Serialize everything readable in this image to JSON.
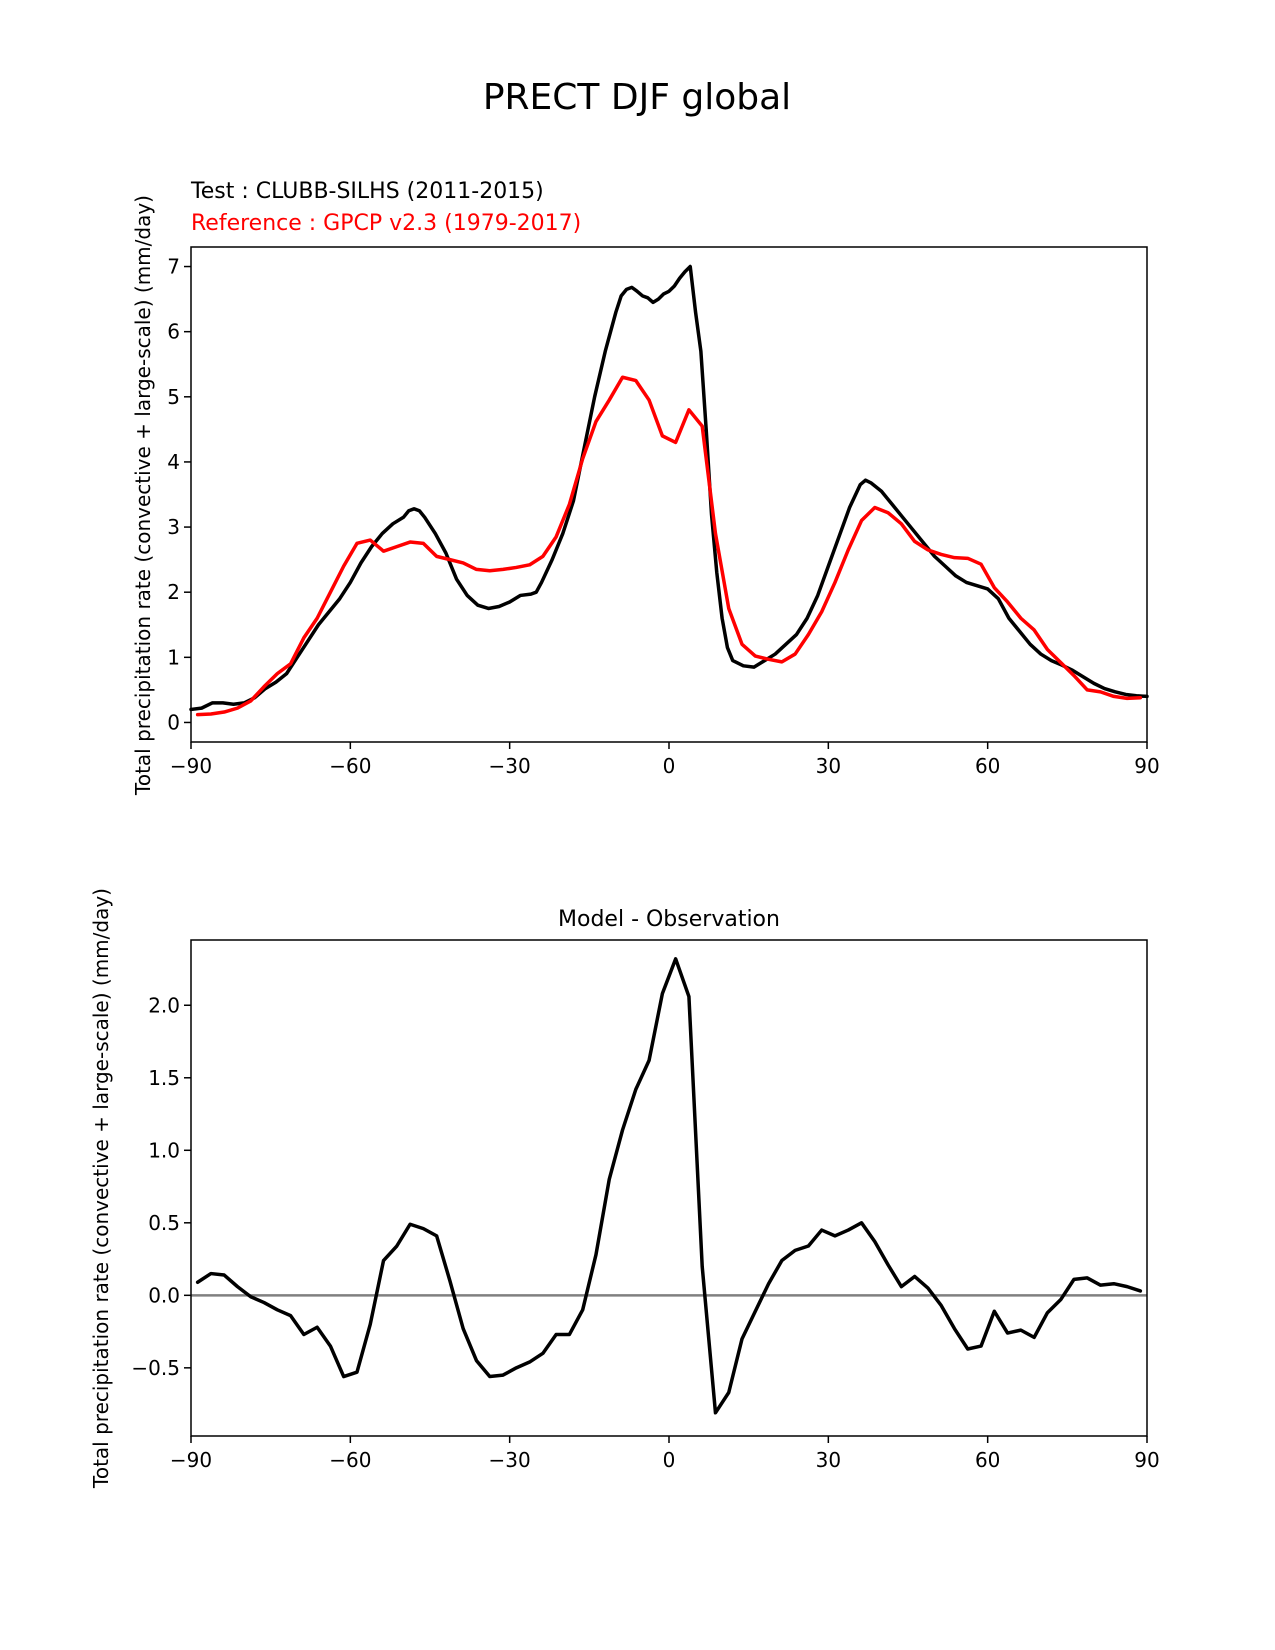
{
  "figure_title": "PRECT DJF global",
  "chart_data": [
    {
      "type": "line",
      "title_lines": [
        {
          "text": "Test : CLUBB-SILHS (2011-2015)",
          "color": "#000000"
        },
        {
          "text": "Reference : GPCP v2.3 (1979-2017)",
          "color": "#ff0000"
        }
      ],
      "ylabel": "Total precipitation rate (convective + large-scale) (mm/day)",
      "xlim": [
        -90,
        90
      ],
      "ylim": [
        -0.3,
        7.3
      ],
      "xticks": [
        -90,
        -60,
        -30,
        0,
        30,
        60,
        90
      ],
      "xtick_labels": [
        "−90",
        "−60",
        "−30",
        "0",
        "30",
        "60",
        "90"
      ],
      "yticks": [
        0,
        1,
        2,
        3,
        4,
        5,
        6,
        7
      ],
      "ytick_labels": [
        "0",
        "1",
        "2",
        "3",
        "4",
        "5",
        "6",
        "7"
      ],
      "series": [
        {
          "role": "test",
          "color": "#000000",
          "points": [
            [
              -90,
              0.2
            ],
            [
              -88,
              0.22
            ],
            [
              -86,
              0.3
            ],
            [
              -84,
              0.3
            ],
            [
              -82,
              0.28
            ],
            [
              -80,
              0.3
            ],
            [
              -78,
              0.38
            ],
            [
              -76,
              0.52
            ],
            [
              -74,
              0.62
            ],
            [
              -72,
              0.75
            ],
            [
              -70,
              1.0
            ],
            [
              -68,
              1.25
            ],
            [
              -66,
              1.5
            ],
            [
              -64,
              1.7
            ],
            [
              -62,
              1.9
            ],
            [
              -60,
              2.15
            ],
            [
              -58,
              2.45
            ],
            [
              -56,
              2.7
            ],
            [
              -54,
              2.9
            ],
            [
              -52,
              3.05
            ],
            [
              -50,
              3.15
            ],
            [
              -49,
              3.25
            ],
            [
              -48,
              3.28
            ],
            [
              -47,
              3.25
            ],
            [
              -46,
              3.15
            ],
            [
              -44,
              2.9
            ],
            [
              -42,
              2.6
            ],
            [
              -40,
              2.2
            ],
            [
              -38,
              1.95
            ],
            [
              -36,
              1.8
            ],
            [
              -34,
              1.75
            ],
            [
              -32,
              1.78
            ],
            [
              -30,
              1.85
            ],
            [
              -28,
              1.95
            ],
            [
              -26,
              1.97
            ],
            [
              -25,
              2.0
            ],
            [
              -24,
              2.15
            ],
            [
              -22,
              2.5
            ],
            [
              -20,
              2.9
            ],
            [
              -18,
              3.4
            ],
            [
              -16,
              4.2
            ],
            [
              -14,
              5.0
            ],
            [
              -12,
              5.7
            ],
            [
              -10,
              6.3
            ],
            [
              -9,
              6.55
            ],
            [
              -8,
              6.65
            ],
            [
              -7,
              6.68
            ],
            [
              -6,
              6.62
            ],
            [
              -5,
              6.55
            ],
            [
              -4,
              6.52
            ],
            [
              -3,
              6.45
            ],
            [
              -2,
              6.5
            ],
            [
              -1,
              6.58
            ],
            [
              0,
              6.62
            ],
            [
              1,
              6.7
            ],
            [
              2,
              6.82
            ],
            [
              3,
              6.92
            ],
            [
              4,
              7.0
            ],
            [
              5,
              6.3
            ],
            [
              6,
              5.7
            ],
            [
              7,
              4.5
            ],
            [
              8,
              3.2
            ],
            [
              9,
              2.3
            ],
            [
              10,
              1.6
            ],
            [
              11,
              1.15
            ],
            [
              12,
              0.95
            ],
            [
              14,
              0.87
            ],
            [
              16,
              0.85
            ],
            [
              18,
              0.95
            ],
            [
              20,
              1.05
            ],
            [
              22,
              1.2
            ],
            [
              24,
              1.35
            ],
            [
              26,
              1.6
            ],
            [
              28,
              1.95
            ],
            [
              30,
              2.4
            ],
            [
              32,
              2.85
            ],
            [
              34,
              3.3
            ],
            [
              36,
              3.65
            ],
            [
              37,
              3.72
            ],
            [
              38,
              3.68
            ],
            [
              40,
              3.55
            ],
            [
              42,
              3.35
            ],
            [
              44,
              3.15
            ],
            [
              46,
              2.95
            ],
            [
              48,
              2.75
            ],
            [
              50,
              2.55
            ],
            [
              52,
              2.4
            ],
            [
              54,
              2.25
            ],
            [
              56,
              2.15
            ],
            [
              58,
              2.1
            ],
            [
              60,
              2.05
            ],
            [
              62,
              1.9
            ],
            [
              64,
              1.6
            ],
            [
              66,
              1.4
            ],
            [
              68,
              1.2
            ],
            [
              70,
              1.05
            ],
            [
              72,
              0.95
            ],
            [
              74,
              0.88
            ],
            [
              76,
              0.8
            ],
            [
              78,
              0.7
            ],
            [
              80,
              0.6
            ],
            [
              82,
              0.52
            ],
            [
              84,
              0.47
            ],
            [
              86,
              0.43
            ],
            [
              88,
              0.41
            ],
            [
              90,
              0.4
            ]
          ]
        },
        {
          "role": "reference",
          "color": "#ff0000",
          "points": [
            [
              -88.75,
              0.12
            ],
            [
              -86.25,
              0.13
            ],
            [
              -83.75,
              0.16
            ],
            [
              -81.25,
              0.22
            ],
            [
              -78.75,
              0.33
            ],
            [
              -76.25,
              0.55
            ],
            [
              -73.75,
              0.75
            ],
            [
              -71.25,
              0.9
            ],
            [
              -68.75,
              1.3
            ],
            [
              -66.25,
              1.6
            ],
            [
              -63.75,
              2.0
            ],
            [
              -61.25,
              2.4
            ],
            [
              -58.75,
              2.75
            ],
            [
              -56.25,
              2.8
            ],
            [
              -53.75,
              2.63
            ],
            [
              -51.25,
              2.7
            ],
            [
              -48.75,
              2.77
            ],
            [
              -46.25,
              2.75
            ],
            [
              -43.75,
              2.55
            ],
            [
              -41.25,
              2.5
            ],
            [
              -38.75,
              2.45
            ],
            [
              -36.25,
              2.35
            ],
            [
              -33.75,
              2.33
            ],
            [
              -31.25,
              2.35
            ],
            [
              -28.75,
              2.38
            ],
            [
              -26.25,
              2.42
            ],
            [
              -23.75,
              2.55
            ],
            [
              -21.25,
              2.85
            ],
            [
              -18.75,
              3.35
            ],
            [
              -16.25,
              4.05
            ],
            [
              -13.75,
              4.62
            ],
            [
              -11.25,
              4.95
            ],
            [
              -8.75,
              5.3
            ],
            [
              -6.25,
              5.25
            ],
            [
              -3.75,
              4.95
            ],
            [
              -1.25,
              4.4
            ],
            [
              1.25,
              4.3
            ],
            [
              3.75,
              4.8
            ],
            [
              6.25,
              4.55
            ],
            [
              8.75,
              2.9
            ],
            [
              11.25,
              1.75
            ],
            [
              13.75,
              1.2
            ],
            [
              16.25,
              1.02
            ],
            [
              18.75,
              0.97
            ],
            [
              21.25,
              0.93
            ],
            [
              23.75,
              1.05
            ],
            [
              26.25,
              1.35
            ],
            [
              28.75,
              1.7
            ],
            [
              31.25,
              2.15
            ],
            [
              33.75,
              2.65
            ],
            [
              36.25,
              3.1
            ],
            [
              38.75,
              3.3
            ],
            [
              41.25,
              3.22
            ],
            [
              43.75,
              3.05
            ],
            [
              46.25,
              2.78
            ],
            [
              48.75,
              2.65
            ],
            [
              51.25,
              2.58
            ],
            [
              53.75,
              2.53
            ],
            [
              56.25,
              2.52
            ],
            [
              58.75,
              2.43
            ],
            [
              61.25,
              2.07
            ],
            [
              63.75,
              1.85
            ],
            [
              66.25,
              1.6
            ],
            [
              68.75,
              1.42
            ],
            [
              71.25,
              1.12
            ],
            [
              73.75,
              0.92
            ],
            [
              76.25,
              0.72
            ],
            [
              78.75,
              0.5
            ],
            [
              81.25,
              0.47
            ],
            [
              83.75,
              0.4
            ],
            [
              86.25,
              0.37
            ],
            [
              88.75,
              0.38
            ]
          ]
        }
      ]
    },
    {
      "type": "line",
      "title": "Model - Observation",
      "ylabel": "Total precipitation rate (convective + large-scale) (mm/day)",
      "xlim": [
        -90,
        90
      ],
      "ylim": [
        -0.97,
        2.45
      ],
      "xticks": [
        -90,
        -60,
        -30,
        0,
        30,
        60,
        90
      ],
      "xtick_labels": [
        "−90",
        "−60",
        "−30",
        "0",
        "30",
        "60",
        "90"
      ],
      "yticks": [
        -0.5,
        0.0,
        0.5,
        1.0,
        1.5,
        2.0
      ],
      "ytick_labels": [
        "−0.5",
        "0.0",
        "0.5",
        "1.0",
        "1.5",
        "2.0"
      ],
      "zero_line_color": "#808080",
      "series": [
        {
          "role": "difference",
          "color": "#000000",
          "points": [
            [
              -88.75,
              0.09
            ],
            [
              -86.25,
              0.15
            ],
            [
              -83.75,
              0.14
            ],
            [
              -81.25,
              0.06
            ],
            [
              -78.75,
              -0.01
            ],
            [
              -76.25,
              -0.05
            ],
            [
              -73.75,
              -0.1
            ],
            [
              -71.25,
              -0.14
            ],
            [
              -68.75,
              -0.27
            ],
            [
              -66.25,
              -0.22
            ],
            [
              -63.75,
              -0.35
            ],
            [
              -61.25,
              -0.56
            ],
            [
              -58.75,
              -0.53
            ],
            [
              -56.25,
              -0.2
            ],
            [
              -53.75,
              0.24
            ],
            [
              -51.25,
              0.34
            ],
            [
              -48.75,
              0.49
            ],
            [
              -46.25,
              0.46
            ],
            [
              -43.75,
              0.41
            ],
            [
              -41.25,
              0.1
            ],
            [
              -38.75,
              -0.23
            ],
            [
              -36.25,
              -0.45
            ],
            [
              -33.75,
              -0.56
            ],
            [
              -31.25,
              -0.55
            ],
            [
              -28.75,
              -0.5
            ],
            [
              -26.25,
              -0.46
            ],
            [
              -23.75,
              -0.4
            ],
            [
              -21.25,
              -0.27
            ],
            [
              -18.75,
              -0.27
            ],
            [
              -16.25,
              -0.1
            ],
            [
              -13.75,
              0.28
            ],
            [
              -11.25,
              0.8
            ],
            [
              -8.75,
              1.14
            ],
            [
              -6.25,
              1.42
            ],
            [
              -3.75,
              1.62
            ],
            [
              -1.25,
              2.08
            ],
            [
              1.25,
              2.32
            ],
            [
              3.75,
              2.06
            ],
            [
              6.25,
              0.2
            ],
            [
              8.75,
              -0.81
            ],
            [
              11.25,
              -0.67
            ],
            [
              13.75,
              -0.3
            ],
            [
              16.25,
              -0.11
            ],
            [
              18.75,
              0.08
            ],
            [
              21.25,
              0.24
            ],
            [
              23.75,
              0.31
            ],
            [
              26.25,
              0.34
            ],
            [
              28.75,
              0.45
            ],
            [
              31.25,
              0.41
            ],
            [
              33.75,
              0.45
            ],
            [
              36.25,
              0.5
            ],
            [
              38.75,
              0.37
            ],
            [
              41.25,
              0.21
            ],
            [
              43.75,
              0.06
            ],
            [
              46.25,
              0.13
            ],
            [
              48.75,
              0.05
            ],
            [
              51.25,
              -0.07
            ],
            [
              53.75,
              -0.23
            ],
            [
              56.25,
              -0.37
            ],
            [
              58.75,
              -0.35
            ],
            [
              61.25,
              -0.11
            ],
            [
              63.75,
              -0.26
            ],
            [
              66.25,
              -0.24
            ],
            [
              68.75,
              -0.29
            ],
            [
              71.25,
              -0.12
            ],
            [
              73.75,
              -0.03
            ],
            [
              76.25,
              0.11
            ],
            [
              78.75,
              0.12
            ],
            [
              81.25,
              0.07
            ],
            [
              83.75,
              0.08
            ],
            [
              86.25,
              0.06
            ],
            [
              88.75,
              0.03
            ]
          ]
        }
      ]
    }
  ]
}
